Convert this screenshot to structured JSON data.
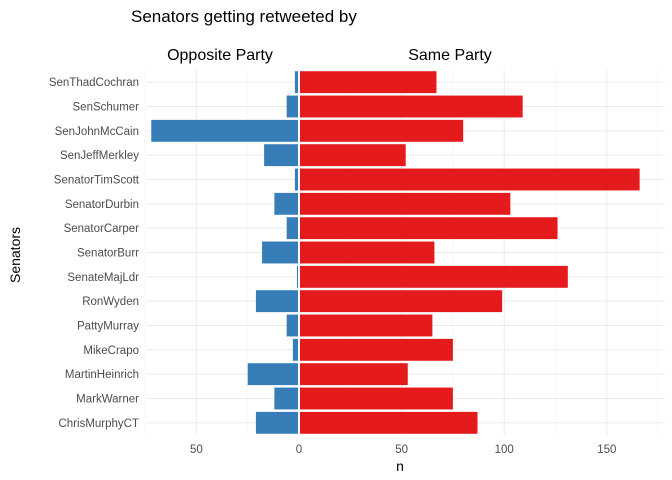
{
  "chart_data": {
    "type": "bar",
    "orientation": "horizontal",
    "title": "Senators getting retweeted by",
    "xlabel": "n",
    "ylabel": "Senators",
    "xlim": [
      -75,
      175
    ],
    "x_ticks": [
      -50,
      0,
      50,
      100,
      150
    ],
    "x_tick_labels": [
      "50",
      "0",
      "50",
      "100",
      "150"
    ],
    "grid": true,
    "categories": [
      "SenThadCochran",
      "SenSchumer",
      "SenJohnMcCain",
      "SenJeffMerkley",
      "SenatorTimScott",
      "SenatorDurbin",
      "SenatorCarper",
      "SenatorBurr",
      "SenateMajLdr",
      "RonWyden",
      "PattyMurray",
      "MikeCrapo",
      "MartinHeinrich",
      "MarkWarner",
      "ChrisMurphyCT"
    ],
    "series": [
      {
        "name": "Opposite Party",
        "color": "#377eb8",
        "values": [
          2,
          6,
          72,
          17,
          2,
          12,
          6,
          18,
          1,
          21,
          6,
          3,
          25,
          12,
          21
        ]
      },
      {
        "name": "Same Party",
        "color": "#e41a1c",
        "values": [
          67,
          109,
          80,
          52,
          166,
          103,
          126,
          66,
          131,
          99,
          65,
          75,
          53,
          75,
          87
        ]
      }
    ]
  }
}
